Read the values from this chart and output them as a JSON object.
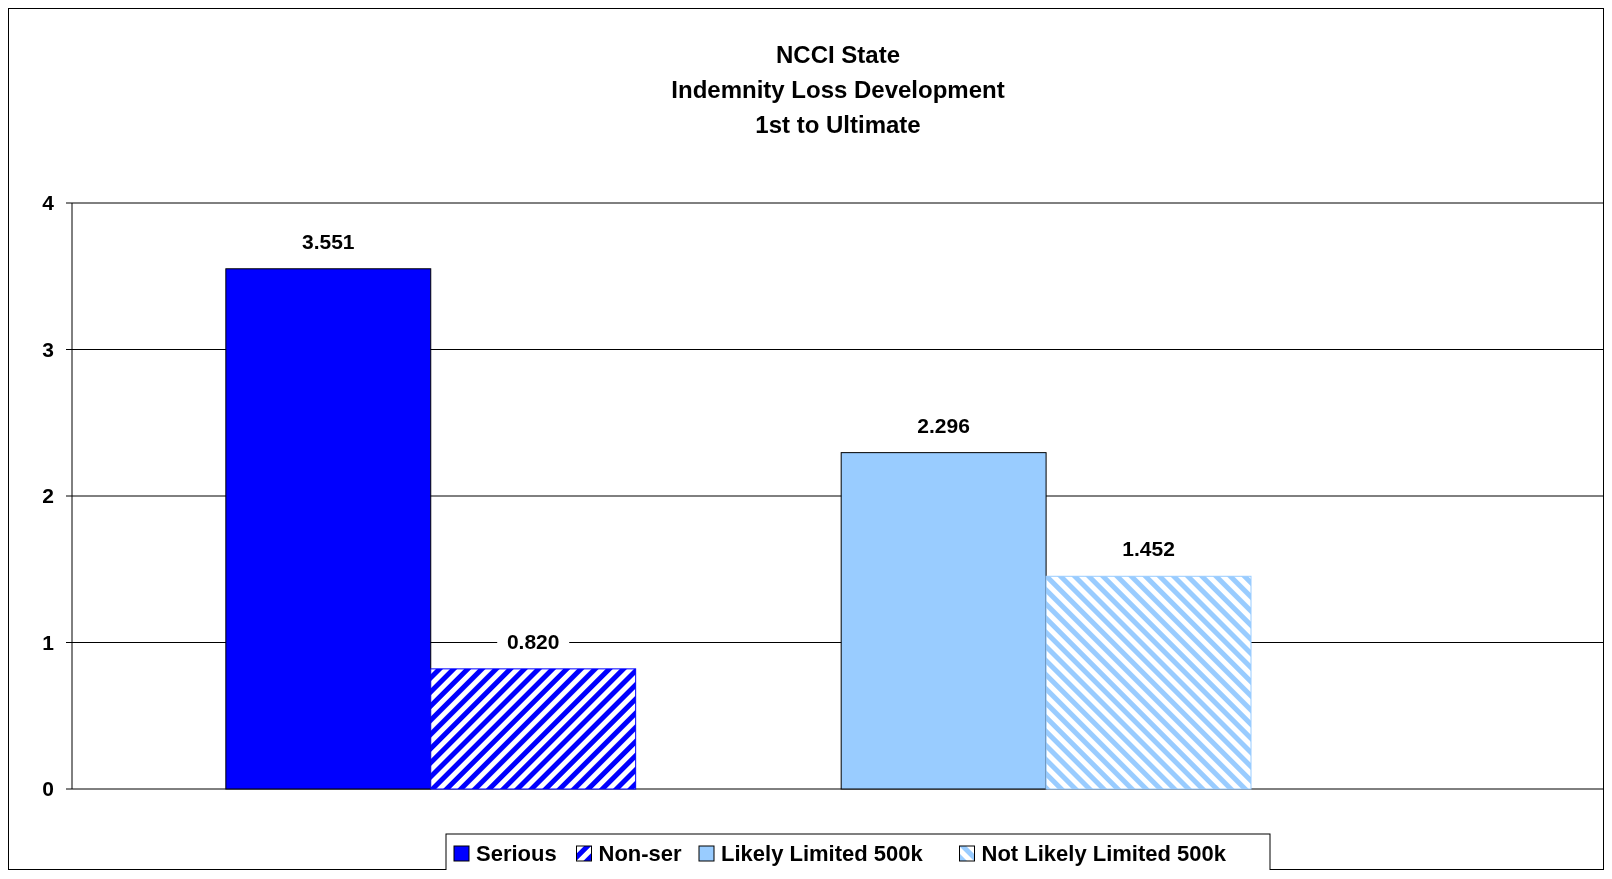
{
  "chart_data": {
    "type": "bar",
    "title": "NCCI State\nIndemnity Loss Development\n1st to Ultimate",
    "categories": [
      null,
      null
    ],
    "series": [
      {
        "name": "Serious",
        "color": "#0000ff",
        "values": [
          3.551,
          null
        ],
        "value_labels": [
          "3.551",
          null
        ]
      },
      {
        "name": "Non-ser",
        "color": "#0000ff",
        "values": [
          0.82,
          null
        ],
        "value_labels": [
          "0.820",
          null
        ]
      },
      {
        "name": "Likely Limited 500k",
        "color": "#99ccff",
        "values": [
          null,
          2.296
        ],
        "value_labels": [
          null,
          "2.296"
        ]
      },
      {
        "name": "Not Likely Limited 500k",
        "color": "#99ccff",
        "values": [
          null,
          1.452
        ],
        "value_labels": [
          null,
          "1.452"
        ]
      }
    ],
    "ylim": [
      0,
      4
    ],
    "yticks": [
      0,
      1,
      2,
      3,
      4
    ],
    "grid": "y",
    "legend": "bottom",
    "tick_labels": "y"
  }
}
